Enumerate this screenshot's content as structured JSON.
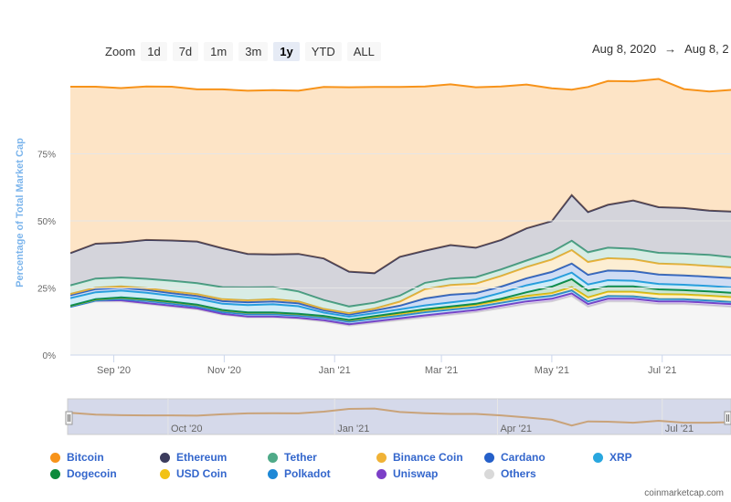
{
  "zoom": {
    "label": "Zoom",
    "buttons": [
      "1d",
      "7d",
      "1m",
      "3m",
      "1y",
      "YTD",
      "ALL"
    ],
    "active": "1y"
  },
  "range": {
    "from": "Aug 8, 2020",
    "arrow": "→",
    "to": "Aug 8, 2"
  },
  "credit": "coinmarketcap.com",
  "navigator_labels": [
    "Oct '20",
    "Jan '21",
    "Apr '21",
    "Jul '21"
  ],
  "chart_data": {
    "type": "area",
    "stacked": true,
    "ylabel": "Percentage of Total Market Cap",
    "y_ticks": [
      "0%",
      "25%",
      "50%",
      "75%"
    ],
    "ylim": [
      0,
      100
    ],
    "x_ticks": [
      "Sep '20",
      "Nov '20",
      "Jan '21",
      "Mar '21",
      "May '21",
      "Jul '21"
    ],
    "x": [
      "2020-08-08",
      "2020-08-22",
      "2020-09-05",
      "2020-09-19",
      "2020-10-03",
      "2020-10-17",
      "2020-10-31",
      "2020-11-14",
      "2020-11-28",
      "2020-12-12",
      "2020-12-26",
      "2021-01-09",
      "2021-01-23",
      "2021-02-06",
      "2021-02-20",
      "2021-03-06",
      "2021-03-20",
      "2021-04-03",
      "2021-04-17",
      "2021-05-01",
      "2021-05-12",
      "2021-05-21",
      "2021-06-01",
      "2021-06-15",
      "2021-06-29",
      "2021-07-13",
      "2021-07-27",
      "2021-08-08"
    ],
    "series": [
      {
        "name": "Others",
        "color": "#d9d9d9",
        "values": [
          18,
          20,
          20,
          19,
          18,
          17,
          15,
          14,
          14,
          13.5,
          12.5,
          11,
          12,
          13,
          14,
          15,
          16,
          17.5,
          19,
          20,
          22,
          18,
          20,
          20,
          19,
          19,
          18.5,
          18
        ]
      },
      {
        "name": "Uniswap",
        "color": "#7c3fc7",
        "values": [
          0,
          0.3,
          0.4,
          0.4,
          0.4,
          0.4,
          0.4,
          0.4,
          0.4,
          0.4,
          0.5,
          0.5,
          0.6,
          0.7,
          0.8,
          0.8,
          0.8,
          0.9,
          1,
          1,
          1,
          1,
          1,
          1,
          1,
          1,
          1,
          1
        ]
      },
      {
        "name": "Polkadot",
        "color": "#1e88d6",
        "values": [
          0,
          0,
          0.5,
          0.8,
          0.8,
          0.7,
          0.7,
          0.8,
          0.8,
          0.8,
          0.9,
          0.9,
          1,
          1,
          1.2,
          1.1,
          1.1,
          1.1,
          1.1,
          1.1,
          1.1,
          1,
          1,
          0.9,
          0.9,
          0.8,
          0.8,
          0.8
        ]
      },
      {
        "name": "USD Coin",
        "color": "#f2c216",
        "values": [
          0.3,
          0.4,
          0.5,
          0.5,
          0.6,
          0.6,
          0.6,
          0.6,
          0.6,
          0.6,
          0.6,
          0.6,
          0.6,
          0.7,
          0.7,
          0.8,
          0.8,
          0.9,
          0.9,
          1,
          1.2,
          1.5,
          1.6,
          1.7,
          1.8,
          1.8,
          1.8,
          1.8
        ]
      },
      {
        "name": "Dogecoin",
        "color": "#0d8a3c",
        "values": [
          0.1,
          0.1,
          0.1,
          0.1,
          0.1,
          0.1,
          0.1,
          0.1,
          0.1,
          0.1,
          0.1,
          0.1,
          0.3,
          0.4,
          0.4,
          0.4,
          0.4,
          0.6,
          1.4,
          2.4,
          3,
          2.5,
          2,
          2,
          1.8,
          1.6,
          1.6,
          1.6
        ]
      },
      {
        "name": "XRP",
        "color": "#29a7df",
        "values": [
          2.8,
          2.6,
          2.5,
          2.4,
          2.2,
          2.2,
          2.3,
          2.7,
          3,
          2.8,
          1.2,
          1.2,
          1.1,
          1.2,
          1.4,
          1.5,
          1.6,
          2.2,
          2.6,
          2.5,
          2.4,
          2.3,
          2.3,
          2.1,
          2,
          2,
          2,
          2
        ]
      },
      {
        "name": "Cardano",
        "color": "#2560c9",
        "values": [
          1.1,
          1.2,
          1.1,
          1.1,
          1,
          1,
          1,
          1.1,
          1.1,
          1.1,
          0.9,
          0.8,
          1,
          1.4,
          2.6,
          2.9,
          2.4,
          2.3,
          2.6,
          3,
          3.4,
          3.6,
          3.6,
          3.6,
          3.5,
          3.5,
          3.5,
          3.5
        ]
      },
      {
        "name": "Binance Coin",
        "color": "#f0b236",
        "values": [
          0.5,
          0.5,
          0.5,
          0.6,
          0.6,
          0.7,
          0.7,
          0.7,
          0.8,
          0.7,
          0.5,
          0.5,
          0.7,
          1.5,
          3.5,
          3.6,
          3.5,
          4,
          4.2,
          4.6,
          5,
          4.8,
          4.6,
          4.4,
          4.1,
          4.1,
          4,
          4
        ]
      },
      {
        "name": "Tether",
        "color": "#4faa88",
        "values": [
          3.2,
          3.4,
          3.3,
          3.5,
          4,
          4.1,
          4.5,
          4.8,
          4.5,
          3.7,
          3.3,
          2.5,
          2.2,
          2.2,
          2.3,
          2.4,
          2.4,
          2.4,
          2.4,
          2.8,
          3.5,
          3.6,
          3.9,
          3.9,
          4,
          4,
          4.1,
          3.8
        ]
      },
      {
        "name": "Ethereum",
        "color": "#3c3c5d",
        "values": [
          12,
          13,
          13,
          14.5,
          15,
          15.5,
          14.5,
          12.5,
          12.2,
          14,
          15.5,
          13,
          11,
          14.5,
          12,
          12.5,
          11,
          11,
          12,
          11.5,
          17,
          15,
          16,
          18,
          17,
          17,
          16.5,
          17
        ]
      },
      {
        "name": "Bitcoin",
        "color": "#f7931a",
        "values": [
          62,
          58.5,
          57.6,
          57.2,
          57.3,
          56.7,
          59.2,
          60.8,
          61.2,
          60.8,
          63.9,
          68.7,
          69.4,
          63.3,
          61.2,
          59.9,
          59.8,
          57.2,
          53.6,
          49.5,
          39.3,
          46.6,
          46.1,
          44.4,
          47.8,
          44.3,
          44.4,
          45.3
        ]
      }
    ],
    "legend": [
      "Bitcoin",
      "Ethereum",
      "Tether",
      "Binance Coin",
      "Cardano",
      "XRP",
      "Dogecoin",
      "USD Coin",
      "Polkadot",
      "Uniswap",
      "Others"
    ],
    "legend_placement": "bottom",
    "grid": true
  }
}
